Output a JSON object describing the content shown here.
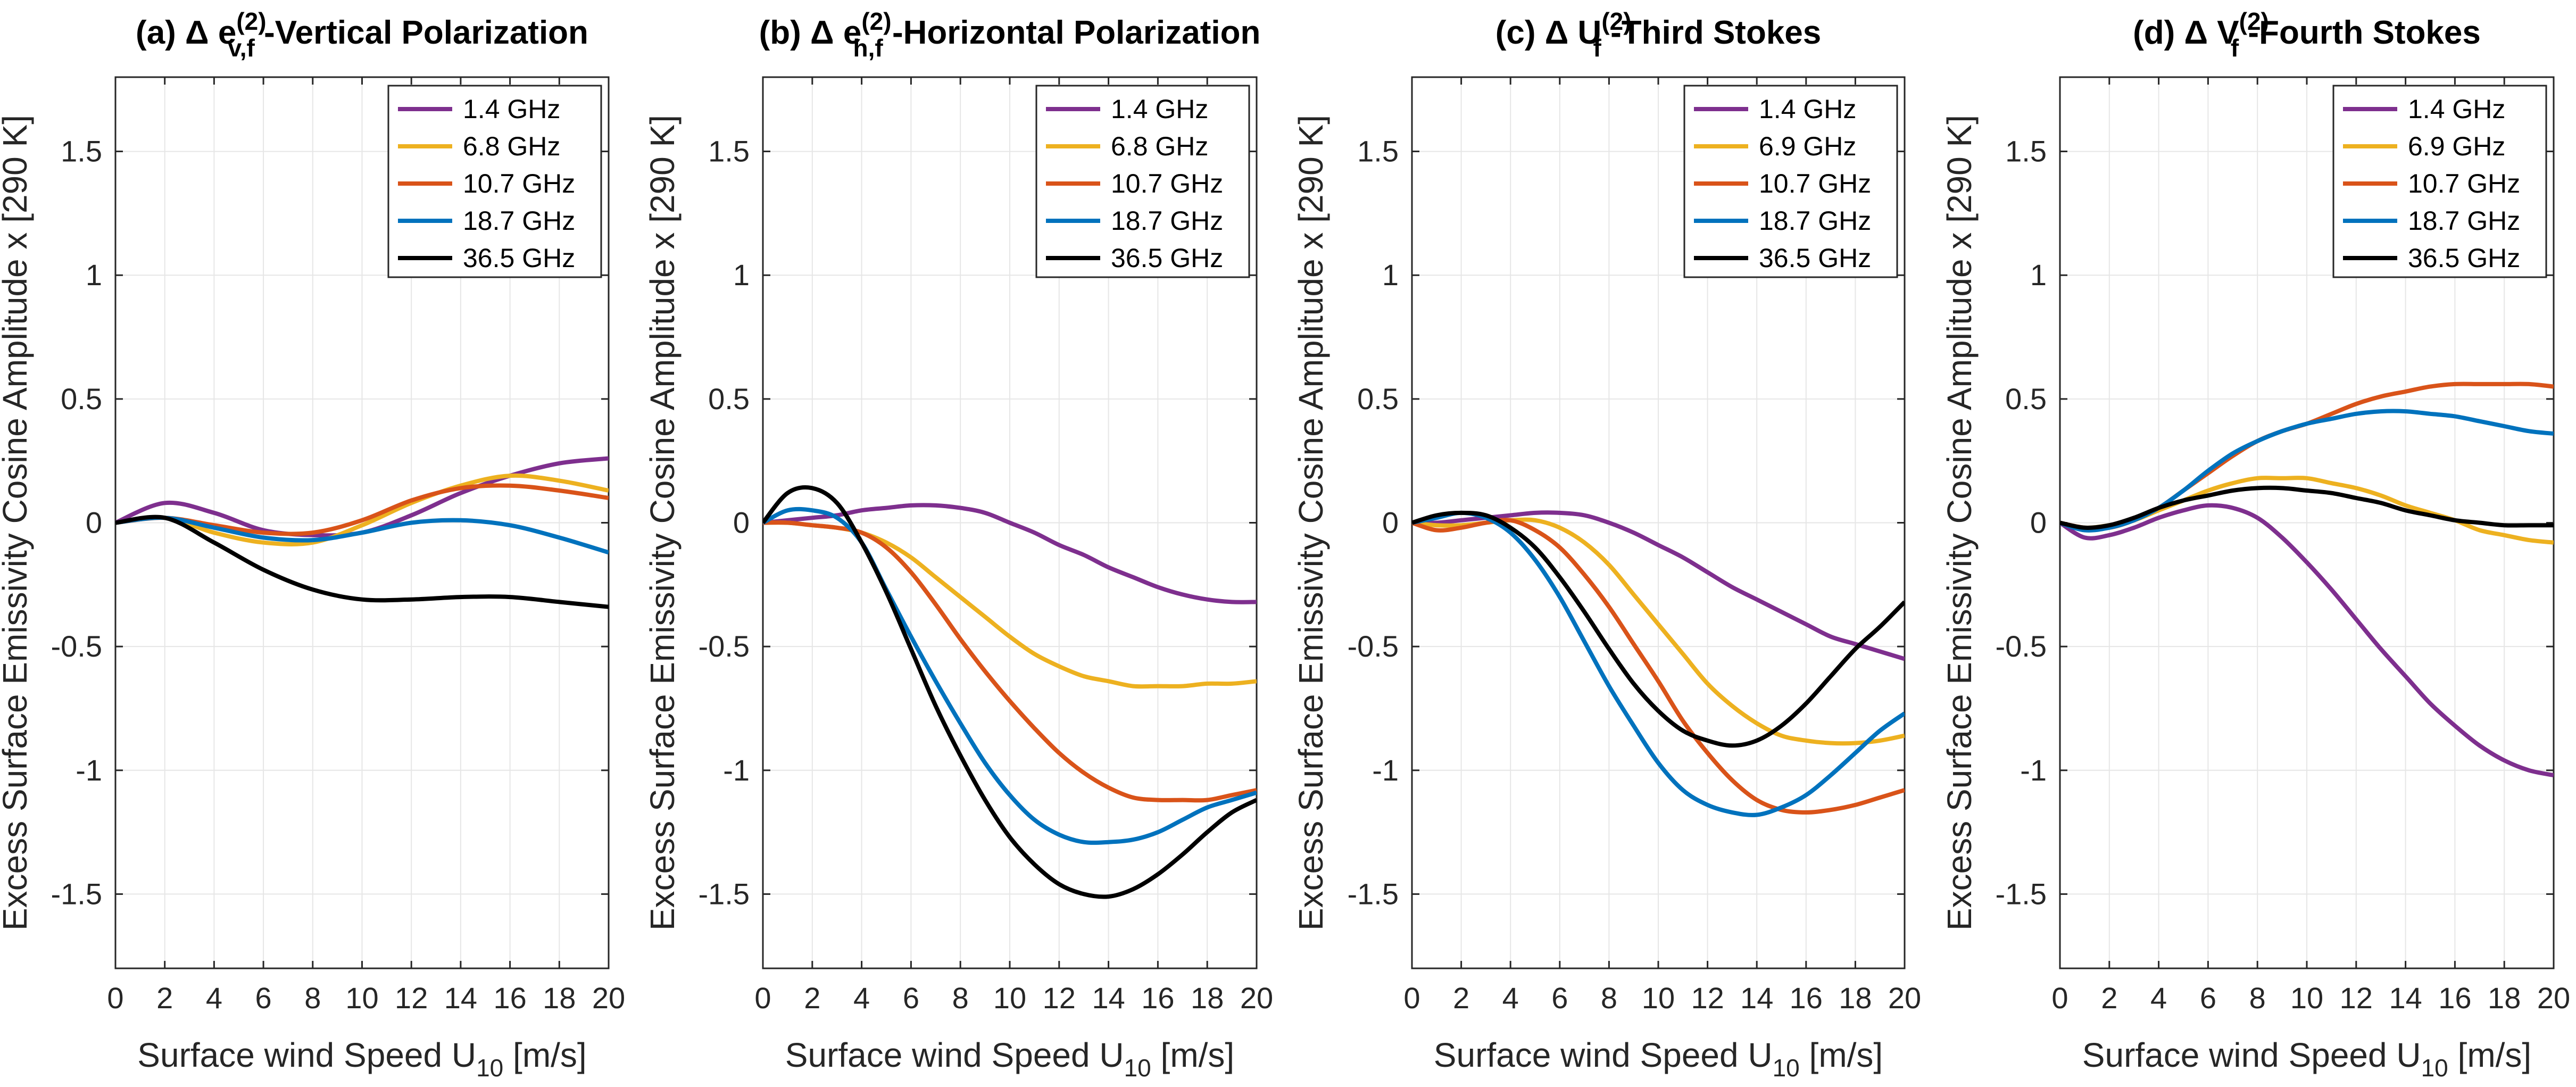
{
  "figure_titles": [
    {
      "prefix": "(a) Δ ",
      "sym": "e",
      "sup": "(2)",
      "sub": "v,f",
      "suffix": " -Vertical Polarization"
    },
    {
      "prefix": "(b) Δ ",
      "sym": "e",
      "sup": "(2)",
      "sub": "h,f",
      "suffix": " -Horizontal Polarization"
    },
    {
      "prefix": "(c) Δ ",
      "sym": "U",
      "sup": "(2)",
      "sub": "f",
      "suffix": " -Third Stokes"
    },
    {
      "prefix": "(d) Δ ",
      "sym": "V",
      "sup": "(2)",
      "sub": "f",
      "suffix": " -Fourth Stokes"
    }
  ],
  "series_colors": [
    "#7E2F8E",
    "#EDB120",
    "#D95319",
    "#0072BD",
    "#000000"
  ],
  "chart_data": [
    {
      "type": "line",
      "title": "(a) Δ e(2)v,f -Vertical Polarization",
      "xlabel": "Surface wind Speed U10 [m/s]",
      "ylabel": "Excess Surface Emissivity Cosine Amplitude x [290 K]",
      "xlim": [
        0,
        20
      ],
      "ylim": [
        -1.8,
        1.8
      ],
      "xticks": [
        0,
        2,
        4,
        6,
        8,
        10,
        12,
        14,
        16,
        18,
        20
      ],
      "yticks": [
        -1.5,
        -1,
        -0.5,
        0,
        0.5,
        1,
        1.5
      ],
      "grid": true,
      "legend_position": "top-right",
      "x": [
        0,
        2,
        4,
        6,
        8,
        10,
        12,
        14,
        16,
        18,
        20
      ],
      "series": [
        {
          "name": "1.4 GHz",
          "values": [
            0.0,
            0.08,
            0.04,
            -0.03,
            -0.05,
            -0.04,
            0.03,
            0.12,
            0.19,
            0.24,
            0.26
          ]
        },
        {
          "name": "6.8 GHz",
          "values": [
            0.0,
            0.02,
            -0.04,
            -0.08,
            -0.08,
            -0.01,
            0.08,
            0.15,
            0.19,
            0.17,
            0.13
          ]
        },
        {
          "name": "10.7 GHz",
          "values": [
            0.0,
            0.02,
            -0.01,
            -0.04,
            -0.04,
            0.01,
            0.09,
            0.14,
            0.15,
            0.13,
            0.1
          ]
        },
        {
          "name": "18.7 GHz",
          "values": [
            0.0,
            0.02,
            -0.02,
            -0.06,
            -0.07,
            -0.04,
            0.0,
            0.01,
            -0.01,
            -0.06,
            -0.12
          ]
        },
        {
          "name": "36.5 GHz",
          "values": [
            0.0,
            0.02,
            -0.08,
            -0.19,
            -0.27,
            -0.31,
            -0.31,
            -0.3,
            -0.3,
            -0.32,
            -0.34
          ]
        }
      ]
    },
    {
      "type": "line",
      "title": "(b) Δ e(2)h,f -Horizontal Polarization",
      "xlabel": "Surface wind Speed U10 [m/s]",
      "ylabel": "Excess Surface Emissivity Cosine Amplitude x [290 K]",
      "xlim": [
        0,
        20
      ],
      "ylim": [
        -1.8,
        1.8
      ],
      "xticks": [
        0,
        2,
        4,
        6,
        8,
        10,
        12,
        14,
        16,
        18,
        20
      ],
      "yticks": [
        -1.5,
        -1,
        -0.5,
        0,
        0.5,
        1,
        1.5
      ],
      "grid": true,
      "legend_position": "top-right",
      "x": [
        0,
        1,
        2,
        3,
        4,
        5,
        6,
        7,
        8,
        9,
        10,
        11,
        12,
        13,
        14,
        15,
        16,
        17,
        18,
        19,
        20
      ],
      "series": [
        {
          "name": "1.4 GHz",
          "values": [
            0.0,
            0.01,
            0.02,
            0.03,
            0.05,
            0.06,
            0.07,
            0.07,
            0.06,
            0.04,
            0.0,
            -0.04,
            -0.09,
            -0.13,
            -0.18,
            -0.22,
            -0.26,
            -0.29,
            -0.31,
            -0.32,
            -0.32
          ]
        },
        {
          "name": "6.8 GHz",
          "values": [
            0.0,
            0.0,
            -0.01,
            -0.02,
            -0.04,
            -0.08,
            -0.14,
            -0.22,
            -0.3,
            -0.38,
            -0.46,
            -0.53,
            -0.58,
            -0.62,
            -0.64,
            -0.66,
            -0.66,
            -0.66,
            -0.65,
            -0.65,
            -0.64
          ]
        },
        {
          "name": "10.7 GHz",
          "values": [
            0.0,
            0.0,
            -0.01,
            -0.02,
            -0.04,
            -0.1,
            -0.2,
            -0.33,
            -0.47,
            -0.6,
            -0.72,
            -0.83,
            -0.93,
            -1.01,
            -1.07,
            -1.11,
            -1.12,
            -1.12,
            -1.12,
            -1.1,
            -1.08
          ]
        },
        {
          "name": "18.7 GHz",
          "values": [
            0.0,
            0.05,
            0.05,
            0.02,
            -0.08,
            -0.27,
            -0.46,
            -0.64,
            -0.81,
            -0.97,
            -1.1,
            -1.2,
            -1.26,
            -1.29,
            -1.29,
            -1.28,
            -1.25,
            -1.2,
            -1.15,
            -1.12,
            -1.09
          ]
        },
        {
          "name": "36.5 GHz",
          "values": [
            0.0,
            0.12,
            0.14,
            0.08,
            -0.08,
            -0.28,
            -0.51,
            -0.74,
            -0.94,
            -1.12,
            -1.27,
            -1.38,
            -1.46,
            -1.5,
            -1.51,
            -1.48,
            -1.42,
            -1.34,
            -1.25,
            -1.17,
            -1.12
          ]
        }
      ]
    },
    {
      "type": "line",
      "title": "(c) Δ U(2)f -Third Stokes",
      "xlabel": "Surface wind Speed U10 [m/s]",
      "ylabel": "Excess Surface Emissivity Cosine Amplitude x [290 K]",
      "xlim": [
        0,
        20
      ],
      "ylim": [
        -1.8,
        1.8
      ],
      "xticks": [
        0,
        2,
        4,
        6,
        8,
        10,
        12,
        14,
        16,
        18,
        20
      ],
      "yticks": [
        -1.5,
        -1,
        -0.5,
        0,
        0.5,
        1,
        1.5
      ],
      "grid": true,
      "legend_position": "top-right",
      "x": [
        0,
        1,
        2,
        3,
        4,
        5,
        6,
        7,
        8,
        9,
        10,
        11,
        12,
        13,
        14,
        15,
        16,
        17,
        18,
        19,
        20
      ],
      "series": [
        {
          "name": "1.4 GHz",
          "values": [
            0.0,
            0.0,
            0.01,
            0.02,
            0.03,
            0.04,
            0.04,
            0.03,
            0.0,
            -0.04,
            -0.09,
            -0.14,
            -0.2,
            -0.26,
            -0.31,
            -0.36,
            -0.41,
            -0.46,
            -0.49,
            -0.52,
            -0.55
          ]
        },
        {
          "name": "6.9 GHz",
          "values": [
            0.0,
            -0.01,
            -0.01,
            0.0,
            0.01,
            0.01,
            -0.02,
            -0.08,
            -0.17,
            -0.29,
            -0.41,
            -0.53,
            -0.65,
            -0.74,
            -0.81,
            -0.86,
            -0.88,
            -0.89,
            -0.89,
            -0.88,
            -0.86
          ]
        },
        {
          "name": "10.7 GHz",
          "values": [
            0.0,
            -0.03,
            -0.02,
            0.0,
            0.01,
            -0.03,
            -0.1,
            -0.21,
            -0.34,
            -0.49,
            -0.64,
            -0.8,
            -0.93,
            -1.04,
            -1.12,
            -1.16,
            -1.17,
            -1.16,
            -1.14,
            -1.11,
            -1.08
          ]
        },
        {
          "name": "18.7 GHz",
          "values": [
            0.0,
            0.02,
            0.04,
            0.02,
            -0.04,
            -0.15,
            -0.3,
            -0.48,
            -0.66,
            -0.82,
            -0.97,
            -1.08,
            -1.14,
            -1.17,
            -1.18,
            -1.15,
            -1.1,
            -1.02,
            -0.93,
            -0.84,
            -0.77
          ]
        },
        {
          "name": "36.5 GHz",
          "values": [
            0.0,
            0.03,
            0.04,
            0.03,
            -0.02,
            -0.1,
            -0.22,
            -0.36,
            -0.51,
            -0.65,
            -0.76,
            -0.84,
            -0.88,
            -0.9,
            -0.88,
            -0.82,
            -0.73,
            -0.62,
            -0.51,
            -0.42,
            -0.32
          ]
        }
      ]
    },
    {
      "type": "line",
      "title": "(d) Δ V(2)f -Fourth Stokes",
      "xlabel": "Surface wind Speed U10 [m/s]",
      "ylabel": "Excess Surface Emissivity Cosine Amplitude x [290 K]",
      "xlim": [
        0,
        20
      ],
      "ylim": [
        -1.8,
        1.8
      ],
      "xticks": [
        0,
        2,
        4,
        6,
        8,
        10,
        12,
        14,
        16,
        18,
        20
      ],
      "yticks": [
        -1.5,
        -1,
        -0.5,
        0,
        0.5,
        1,
        1.5
      ],
      "grid": true,
      "legend_position": "top-right",
      "x": [
        0,
        1,
        2,
        3,
        4,
        5,
        6,
        7,
        8,
        9,
        10,
        11,
        12,
        13,
        14,
        15,
        16,
        17,
        18,
        19,
        20
      ],
      "series": [
        {
          "name": "1.4 GHz",
          "values": [
            0.0,
            -0.06,
            -0.05,
            -0.02,
            0.02,
            0.05,
            0.07,
            0.06,
            0.02,
            -0.06,
            -0.16,
            -0.27,
            -0.39,
            -0.51,
            -0.62,
            -0.73,
            -0.82,
            -0.9,
            -0.96,
            -1.0,
            -1.02
          ]
        },
        {
          "name": "6.9 GHz",
          "values": [
            0.0,
            -0.02,
            -0.01,
            0.01,
            0.05,
            0.09,
            0.13,
            0.16,
            0.18,
            0.18,
            0.18,
            0.16,
            0.14,
            0.11,
            0.07,
            0.04,
            0.01,
            -0.03,
            -0.05,
            -0.07,
            -0.08
          ]
        },
        {
          "name": "10.7 GHz",
          "values": [
            0.0,
            -0.02,
            -0.02,
            0.01,
            0.06,
            0.13,
            0.2,
            0.27,
            0.33,
            0.37,
            0.4,
            0.44,
            0.48,
            0.51,
            0.53,
            0.55,
            0.56,
            0.56,
            0.56,
            0.56,
            0.55
          ]
        },
        {
          "name": "18.7 GHz",
          "values": [
            0.0,
            -0.03,
            -0.02,
            0.01,
            0.06,
            0.13,
            0.21,
            0.28,
            0.33,
            0.37,
            0.4,
            0.42,
            0.44,
            0.45,
            0.45,
            0.44,
            0.43,
            0.41,
            0.39,
            0.37,
            0.36
          ]
        },
        {
          "name": "36.5 GHz",
          "values": [
            0.0,
            -0.02,
            -0.01,
            0.02,
            0.06,
            0.09,
            0.11,
            0.13,
            0.14,
            0.14,
            0.13,
            0.12,
            0.1,
            0.08,
            0.05,
            0.03,
            0.01,
            0.0,
            -0.01,
            -0.01,
            -0.01
          ]
        }
      ]
    }
  ]
}
